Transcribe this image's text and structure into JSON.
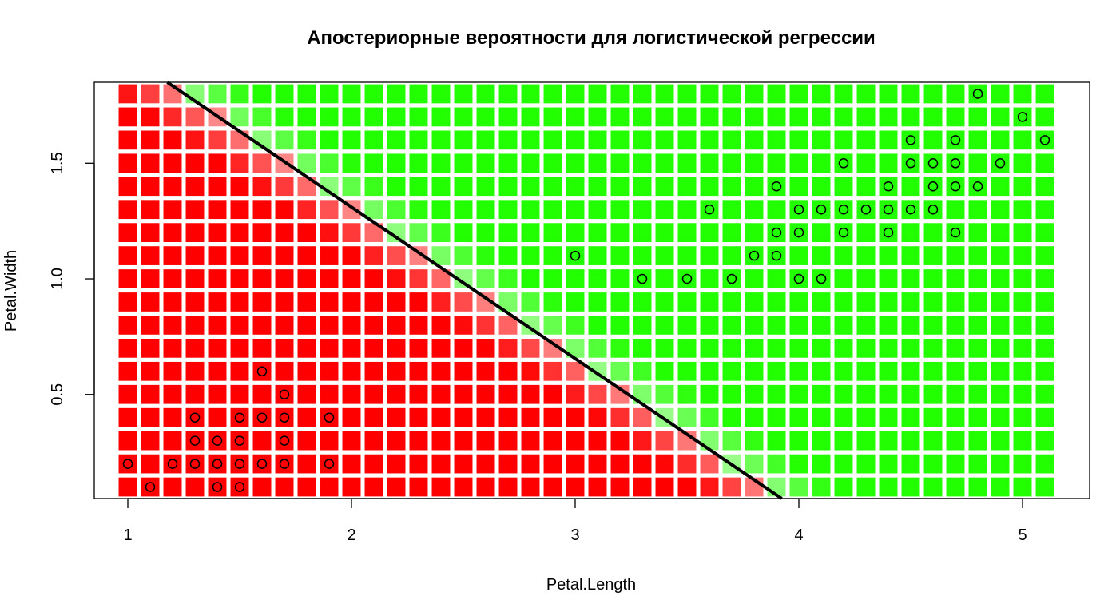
{
  "chart_data": {
    "type": "scatter",
    "title": "Апостериорные вероятности для логистической регрессии",
    "xlabel": "Petal.Length",
    "ylabel": "Petal.Width",
    "xlim": [
      0.85,
      5.3
    ],
    "ylim": [
      0.05,
      1.85
    ],
    "x_ticks": [
      1,
      2,
      3,
      4,
      5
    ],
    "y_ticks": [
      0.5,
      1.0,
      1.5
    ],
    "x_tick_labels": [
      "1",
      "2",
      "3",
      "4",
      "5"
    ],
    "y_tick_labels": [
      "0.5",
      "1.0",
      "1.5"
    ],
    "grid": {
      "x_start": 1.0,
      "x_end": 5.1,
      "x_step": 0.1,
      "y_start": 0.1,
      "y_end": 1.8,
      "y_step": 0.1
    },
    "class_colors": {
      "negative": "#ff0000",
      "positive": "#22ff00"
    },
    "decision_boundary": {
      "from": [
        1.1,
        1.9
      ],
      "to": [
        4.0,
        0.0
      ]
    },
    "points": [
      [
        1.0,
        0.2
      ],
      [
        1.1,
        0.1
      ],
      [
        1.2,
        0.2
      ],
      [
        1.3,
        0.2
      ],
      [
        1.3,
        0.3
      ],
      [
        1.3,
        0.4
      ],
      [
        1.4,
        0.1
      ],
      [
        1.4,
        0.2
      ],
      [
        1.4,
        0.3
      ],
      [
        1.5,
        0.1
      ],
      [
        1.5,
        0.2
      ],
      [
        1.5,
        0.3
      ],
      [
        1.5,
        0.4
      ],
      [
        1.6,
        0.2
      ],
      [
        1.6,
        0.4
      ],
      [
        1.6,
        0.6
      ],
      [
        1.7,
        0.2
      ],
      [
        1.7,
        0.3
      ],
      [
        1.7,
        0.4
      ],
      [
        1.7,
        0.5
      ],
      [
        1.9,
        0.2
      ],
      [
        1.9,
        0.4
      ],
      [
        3.0,
        1.1
      ],
      [
        3.3,
        1.0
      ],
      [
        3.5,
        1.0
      ],
      [
        3.6,
        1.3
      ],
      [
        3.7,
        1.0
      ],
      [
        3.8,
        1.1
      ],
      [
        3.9,
        1.1
      ],
      [
        3.9,
        1.2
      ],
      [
        3.9,
        1.4
      ],
      [
        4.0,
        1.0
      ],
      [
        4.0,
        1.2
      ],
      [
        4.0,
        1.3
      ],
      [
        4.1,
        1.0
      ],
      [
        4.1,
        1.3
      ],
      [
        4.2,
        1.2
      ],
      [
        4.2,
        1.3
      ],
      [
        4.2,
        1.5
      ],
      [
        4.3,
        1.3
      ],
      [
        4.4,
        1.2
      ],
      [
        4.4,
        1.3
      ],
      [
        4.4,
        1.4
      ],
      [
        4.5,
        1.3
      ],
      [
        4.5,
        1.5
      ],
      [
        4.5,
        1.6
      ],
      [
        4.6,
        1.3
      ],
      [
        4.6,
        1.4
      ],
      [
        4.6,
        1.5
      ],
      [
        4.7,
        1.2
      ],
      [
        4.7,
        1.4
      ],
      [
        4.7,
        1.5
      ],
      [
        4.7,
        1.6
      ],
      [
        4.8,
        1.4
      ],
      [
        4.8,
        1.8
      ],
      [
        4.9,
        1.5
      ],
      [
        5.0,
        1.7
      ],
      [
        5.1,
        1.6
      ]
    ]
  }
}
